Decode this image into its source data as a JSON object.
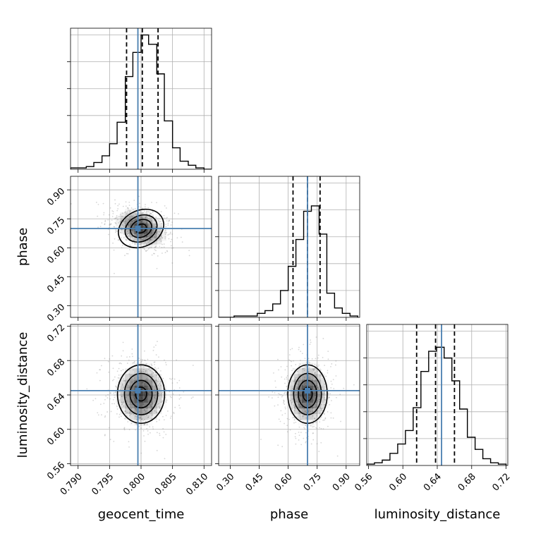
{
  "chart_data": {
    "type": "corner",
    "parameters": [
      "geocent_time",
      "phase",
      "luminosity_distance"
    ],
    "truths": {
      "geocent_time": 0.7995,
      "phase": 0.7,
      "luminosity_distance": 0.645
    },
    "axes": {
      "geocent_time": {
        "range": [
          0.7888,
          0.8112
        ],
        "ticks": [
          0.79,
          0.795,
          0.8,
          0.805,
          0.81
        ],
        "tick_labels": [
          "0.790",
          "0.795",
          "0.800",
          "0.805",
          "0.810"
        ]
      },
      "phase": {
        "range": [
          0.24,
          0.97
        ],
        "ticks": [
          0.3,
          0.45,
          0.6,
          0.75,
          0.9
        ],
        "tick_labels": [
          "0.30",
          "0.45",
          "0.60",
          "0.75",
          "0.90"
        ]
      },
      "luminosity_distance": {
        "range": [
          0.558,
          0.722
        ],
        "ticks": [
          0.56,
          0.6,
          0.64,
          0.68,
          0.72
        ],
        "tick_labels": [
          "0.56",
          "0.60",
          "0.64",
          "0.68",
          "0.72"
        ]
      }
    },
    "histograms": {
      "geocent_time": {
        "quantiles": [
          0.7977,
          0.8002,
          0.8027
        ],
        "hist_ylim": [
          0,
          1.05
        ],
        "bins": [
          0.7888,
          0.79,
          0.7913,
          0.7925,
          0.7938,
          0.795,
          0.7962,
          0.7975,
          0.7987,
          0.8,
          0.8012,
          0.8025,
          0.8037,
          0.805,
          0.8062,
          0.8075,
          0.8087,
          0.81,
          0.8112
        ],
        "counts": [
          0.01,
          0.01,
          0.02,
          0.05,
          0.1,
          0.19,
          0.35,
          0.69,
          0.87,
          1.0,
          0.93,
          0.71,
          0.36,
          0.16,
          0.06,
          0.03,
          0.01,
          0.0
        ]
      },
      "phase": {
        "quantiles": [
          0.625,
          0.7,
          0.765
        ],
        "hist_ylim": [
          0,
          1.05
        ],
        "bins": [
          0.24,
          0.28,
          0.32,
          0.36,
          0.4,
          0.44,
          0.48,
          0.52,
          0.56,
          0.6,
          0.64,
          0.68,
          0.72,
          0.76,
          0.8,
          0.84,
          0.88,
          0.92,
          0.96
        ],
        "counts": [
          0.0,
          0.0,
          0.01,
          0.01,
          0.01,
          0.03,
          0.05,
          0.1,
          0.2,
          0.38,
          0.58,
          0.79,
          0.83,
          0.62,
          0.18,
          0.07,
          0.03,
          0.01
        ]
      },
      "luminosity_distance": {
        "quantiles": [
          0.616,
          0.638,
          0.66
        ],
        "hist_ylim": [
          0,
          1.05
        ],
        "bins": [
          0.558,
          0.567,
          0.576,
          0.585,
          0.594,
          0.603,
          0.612,
          0.621,
          0.63,
          0.639,
          0.648,
          0.657,
          0.666,
          0.675,
          0.684,
          0.693,
          0.702,
          0.711,
          0.72
        ],
        "counts": [
          0.01,
          0.02,
          0.04,
          0.09,
          0.16,
          0.26,
          0.43,
          0.7,
          0.85,
          0.88,
          0.8,
          0.63,
          0.42,
          0.21,
          0.12,
          0.05,
          0.02,
          0.01
        ]
      }
    },
    "contours_2d": [
      {
        "x": "geocent_time",
        "y": "phase",
        "center": [
          0.8,
          0.7
        ],
        "spread": [
          0.0022,
          0.055
        ],
        "correlation": -0.35,
        "levels": [
          0.4,
          0.8,
          1.2,
          1.7
        ]
      },
      {
        "x": "geocent_time",
        "y": "luminosity_distance",
        "center": [
          0.8,
          0.641
        ],
        "spread": [
          0.0022,
          0.02
        ],
        "correlation": 0.0,
        "levels": [
          0.4,
          0.8,
          1.2,
          1.7
        ]
      },
      {
        "x": "phase",
        "y": "luminosity_distance",
        "center": [
          0.7,
          0.641
        ],
        "spread": [
          0.06,
          0.02
        ],
        "correlation": 0.0,
        "levels": [
          0.4,
          0.8,
          1.2,
          1.7
        ]
      }
    ],
    "truth_color": "#4a7fb0",
    "line_color": "#000000",
    "grid": true
  }
}
